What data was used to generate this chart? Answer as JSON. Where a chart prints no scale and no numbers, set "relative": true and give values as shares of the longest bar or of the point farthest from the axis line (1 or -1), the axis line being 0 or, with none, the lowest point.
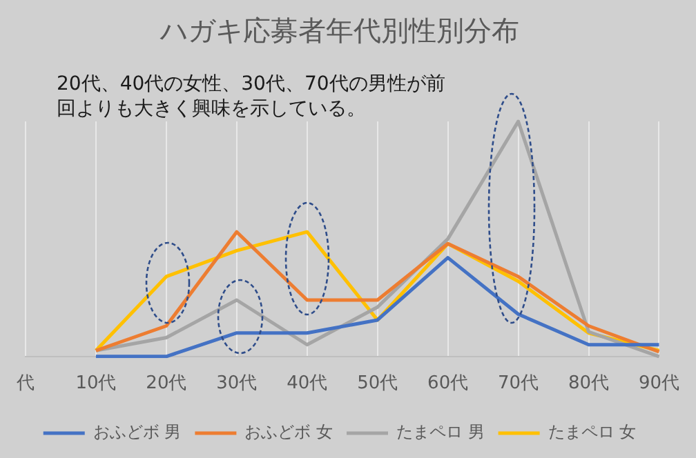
{
  "chart_data": {
    "type": "line",
    "title": "ハガキ応募者年代別性別分布",
    "annotations": [
      "20代、40代の女性、30代、70代の男性が前回よりも大きく興味を示している。"
    ],
    "categories": [
      "代",
      "10代",
      "20代",
      "30代",
      "40代",
      "50代",
      "60代",
      "70代",
      "80代",
      "90代"
    ],
    "relative": true,
    "series": [
      {
        "name": "おふどボ 男",
        "color": "#4472c4",
        "values": [
          null,
          0,
          0,
          0.1,
          0.1,
          0.155,
          0.42,
          0.18,
          0.05,
          0.05
        ]
      },
      {
        "name": "おふどボ 女",
        "color": "#ed7d31",
        "values": [
          null,
          0.025,
          0.13,
          0.53,
          0.24,
          0.24,
          0.48,
          0.34,
          0.13,
          0.02
        ]
      },
      {
        "name": "たまペロ 男",
        "color": "#a5a5a5",
        "values": [
          null,
          0.025,
          0.08,
          0.24,
          0.05,
          0.21,
          0.5,
          1,
          0.105,
          0
        ]
      },
      {
        "name": "たまペロ 女",
        "color": "#ffc000",
        "values": [
          null,
          0.025,
          0.34,
          0.45,
          0.53,
          0.155,
          0.48,
          0.32,
          0.1,
          0.025
        ]
      }
    ],
    "grid": "x",
    "legend": "bottom",
    "marker": "none",
    "line_style": "solid"
  }
}
